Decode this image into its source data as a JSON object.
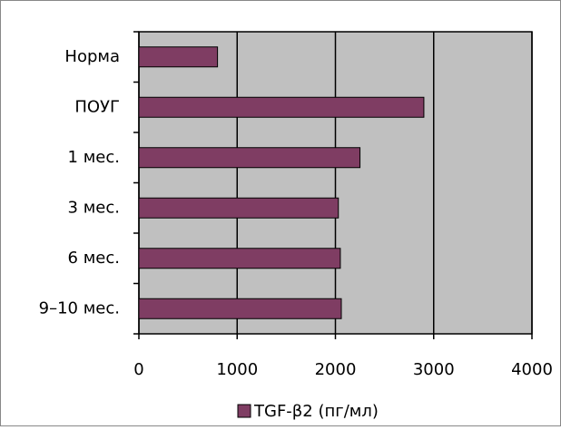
{
  "chart_data": {
    "type": "bar",
    "orientation": "horizontal",
    "categories": [
      "Норма",
      "ПОУГ",
      "1 мес.",
      "3 мес.",
      "6 мес.",
      "9–10 мес."
    ],
    "series": [
      {
        "name": "TGF-β2 (пг/мл)",
        "color": "#7f3d63",
        "values": [
          800,
          2900,
          2250,
          2030,
          2050,
          2060
        ]
      }
    ],
    "xlim": [
      0,
      4000
    ],
    "xticks": [
      0,
      1000,
      2000,
      3000,
      4000
    ],
    "grid": true,
    "legend": "bottom"
  }
}
